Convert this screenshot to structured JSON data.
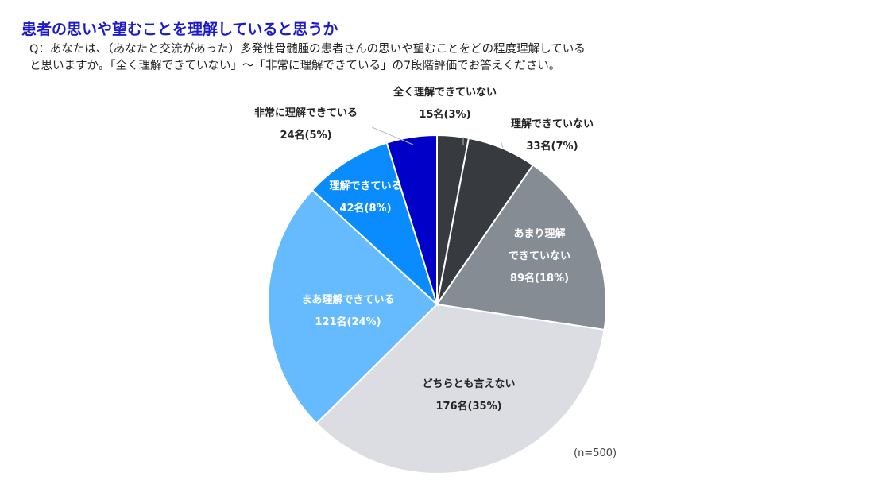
{
  "title": "患者の思いや望むことを理解していると思うか",
  "question": "Q：あなたは、（あなたと交流があった）多発性骨髄腫の患者さんの思いや望むことをどの程度理解している\nと思いますか。「全く理解できていない」〜「非常に理解できている」の7段階評価でお答えください。",
  "chart_data": {
    "type": "pie",
    "start": "top, clockwise",
    "note": "(n=500)",
    "slices": [
      {
        "label": "全く理解できていない",
        "count": 15,
        "percent": 3,
        "value_label": "15名(3%)",
        "color": "#373b40"
      },
      {
        "label": "理解できていない",
        "count": 33,
        "percent": 7,
        "value_label": "33名(7%)",
        "color": "#373b40"
      },
      {
        "label": "あまり理解できていない",
        "label_lines": [
          "あまり理解",
          "できていない"
        ],
        "count": 89,
        "percent": 18,
        "value_label": "89名(18%)",
        "color": "#868c94"
      },
      {
        "label": "どちらとも言えない",
        "count": 176,
        "percent": 35,
        "value_label": "176名(35%)",
        "color": "#dcdde2"
      },
      {
        "label": "まあ理解できている",
        "count": 121,
        "percent": 24,
        "value_label": "121名(24%)",
        "color": "#66bbff"
      },
      {
        "label": "理解できている",
        "count": 42,
        "percent": 8,
        "value_label": "42名(8%)",
        "color": "#0a8cff"
      },
      {
        "label": "非常に理解できている",
        "count": 24,
        "percent": 5,
        "value_label": "24名(5%)",
        "color": "#0000c8"
      }
    ]
  }
}
